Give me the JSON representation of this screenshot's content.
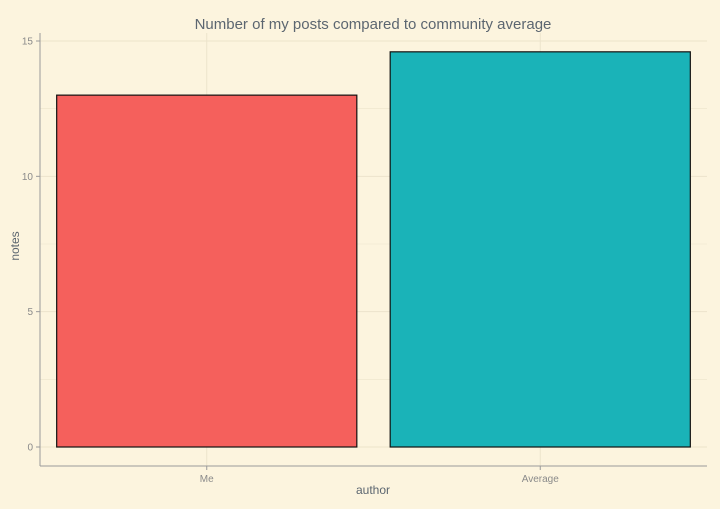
{
  "chart_data": {
    "type": "bar",
    "title": "Number of my posts compared to community average",
    "xlabel": "author",
    "ylabel": "notes",
    "categories": [
      "Me",
      "Average"
    ],
    "values": [
      13,
      14.6
    ],
    "ylim": [
      0,
      15
    ],
    "yticks": [
      0,
      5,
      10,
      15
    ],
    "grid": true,
    "legend": "none",
    "colors": {
      "background": "#fcf4de",
      "grid": "#ece3cb",
      "axis_line": "#9a9a9a",
      "tick_text": "#8a8a8a",
      "label_text": "#5c6670",
      "bar_outline": "#111111",
      "bars": [
        "#f5605c",
        "#1ab3b8"
      ]
    }
  }
}
